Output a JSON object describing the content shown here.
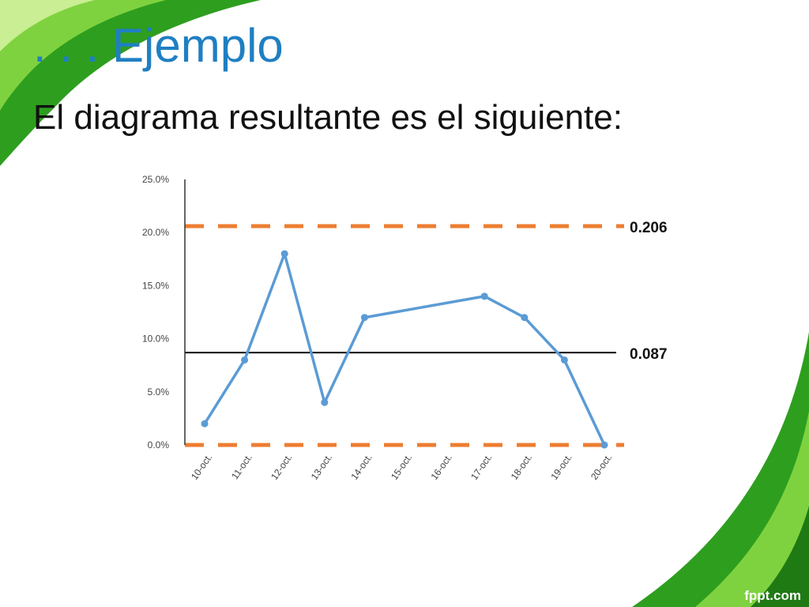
{
  "slide": {
    "title": ". . . Ejemplo",
    "subtitle": "El diagrama resultante es el siguiente:",
    "watermark": "fppt.com"
  },
  "colors": {
    "title": "#1f7fc2",
    "green_dark": "#2a9a1c",
    "green_light": "#8fd64a",
    "series": "#5b9bd5",
    "control_limit": "#ed7d31",
    "center_line": "#000000"
  },
  "chart_data": {
    "type": "line",
    "categories": [
      "10-oct.",
      "11-oct.",
      "12-oct.",
      "13-oct.",
      "14-oct.",
      "15-oct.",
      "16-oct.",
      "17-oct.",
      "18-oct.",
      "19-oct.",
      "20-oct."
    ],
    "series": [
      {
        "values": [
          0.02,
          0.08,
          0.18,
          0.04,
          0.12,
          null,
          null,
          0.14,
          0.12,
          0.08,
          0.0
        ]
      }
    ],
    "reference_lines": [
      {
        "value": 0.206,
        "label": "0.206",
        "style": "dashed",
        "color": "#ed7d31"
      },
      {
        "value": 0.087,
        "label": "0.087",
        "style": "solid",
        "color": "#000000"
      },
      {
        "value": 0.0,
        "label": "",
        "style": "dashed",
        "color": "#ed7d31"
      }
    ],
    "y_ticks": [
      "0.0%",
      "5.0%",
      "10.0%",
      "15.0%",
      "20.0%",
      "25.0%"
    ],
    "ylim": [
      0,
      0.25
    ],
    "title": "",
    "xlabel": "",
    "ylabel": "",
    "grid": false,
    "legend": "none"
  }
}
